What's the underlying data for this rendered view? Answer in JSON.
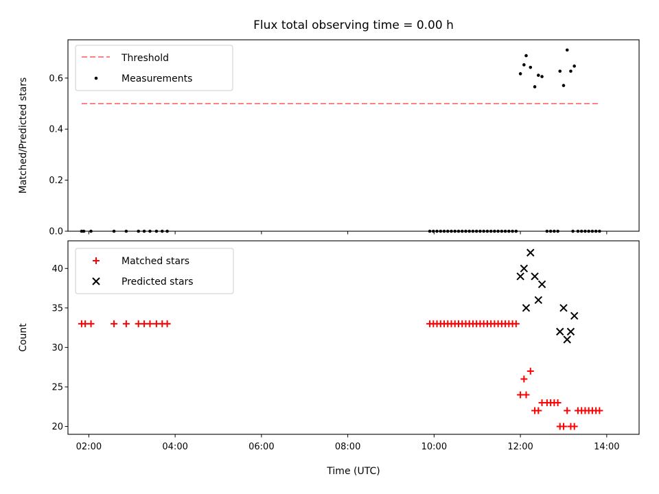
{
  "colors": {
    "threshold": "#ff7f7f",
    "measurement": "#000000",
    "matched": "#ff0000",
    "predicted": "#000000"
  },
  "chart_data": [
    {
      "type": "scatter",
      "title": "Flux total observing time = 0.00 h",
      "xlabel": "",
      "ylabel": "Matched/Predicted stars",
      "xlim": [
        "01:31",
        "14:45"
      ],
      "ylim": [
        0,
        0.75
      ],
      "x_ticks": [
        "02:00",
        "04:00",
        "06:00",
        "08:00",
        "10:00",
        "12:00",
        "14:00"
      ],
      "y_ticks": [
        "0.0",
        "0.2",
        "0.4",
        "0.6"
      ],
      "legend": {
        "position": "top-left",
        "entries": [
          "Threshold",
          "Measurements"
        ]
      },
      "threshold": {
        "name": "Threshold",
        "value": 0.5,
        "x_start": "01:50",
        "x_end": "13:50"
      },
      "series": [
        {
          "name": "Measurements",
          "points": [
            [
              "01:50",
              0
            ],
            [
              "01:53",
              0
            ],
            [
              "02:03",
              0
            ],
            [
              "02:35",
              0
            ],
            [
              "02:52",
              0
            ],
            [
              "03:09",
              0
            ],
            [
              "03:17",
              0
            ],
            [
              "03:25",
              0
            ],
            [
              "03:34",
              0
            ],
            [
              "03:42",
              0
            ],
            [
              "03:49",
              0
            ],
            [
              "09:54",
              0
            ],
            [
              "09:59",
              0
            ],
            [
              "10:04",
              0
            ],
            [
              "10:09",
              0
            ],
            [
              "10:14",
              0
            ],
            [
              "10:19",
              0
            ],
            [
              "10:24",
              0
            ],
            [
              "10:29",
              0
            ],
            [
              "10:34",
              0
            ],
            [
              "10:39",
              0
            ],
            [
              "10:44",
              0
            ],
            [
              "10:49",
              0
            ],
            [
              "10:54",
              0
            ],
            [
              "10:59",
              0
            ],
            [
              "11:04",
              0
            ],
            [
              "11:09",
              0
            ],
            [
              "11:14",
              0
            ],
            [
              "11:19",
              0
            ],
            [
              "11:24",
              0
            ],
            [
              "11:29",
              0
            ],
            [
              "11:34",
              0
            ],
            [
              "11:39",
              0
            ],
            [
              "11:44",
              0
            ],
            [
              "11:49",
              0
            ],
            [
              "11:54",
              0
            ],
            [
              "12:00",
              0.617
            ],
            [
              "12:05",
              0.652
            ],
            [
              "12:08",
              0.688
            ],
            [
              "12:14",
              0.642
            ],
            [
              "12:20",
              0.566
            ],
            [
              "12:25",
              0.611
            ],
            [
              "12:30",
              0.606
            ],
            [
              "12:37",
              0
            ],
            [
              "12:42",
              0
            ],
            [
              "12:47",
              0
            ],
            [
              "12:52",
              0
            ],
            [
              "12:55",
              0.627
            ],
            [
              "13:00",
              0.571
            ],
            [
              "13:05",
              0.71
            ],
            [
              "13:10",
              0.627
            ],
            [
              "13:15",
              0.647
            ],
            [
              "13:13",
              0
            ],
            [
              "13:20",
              0
            ],
            [
              "13:25",
              0
            ],
            [
              "13:30",
              0
            ],
            [
              "13:35",
              0
            ],
            [
              "13:40",
              0
            ],
            [
              "13:45",
              0
            ],
            [
              "13:50",
              0
            ]
          ]
        }
      ]
    },
    {
      "type": "scatter",
      "title": "",
      "xlabel": "Time (UTC)",
      "ylabel": "Count",
      "xlim": [
        "01:31",
        "14:45"
      ],
      "ylim": [
        19,
        43.5
      ],
      "x_ticks": [
        "02:00",
        "04:00",
        "06:00",
        "08:00",
        "10:00",
        "12:00",
        "14:00"
      ],
      "y_ticks": [
        "20",
        "25",
        "30",
        "35",
        "40"
      ],
      "legend": {
        "position": "top-left",
        "entries": [
          "Matched stars",
          "Predicted stars"
        ]
      },
      "series": [
        {
          "name": "Matched stars",
          "points": [
            [
              "01:50",
              33
            ],
            [
              "01:55",
              33
            ],
            [
              "02:03",
              33
            ],
            [
              "02:35",
              33
            ],
            [
              "02:52",
              33
            ],
            [
              "03:09",
              33
            ],
            [
              "03:17",
              33
            ],
            [
              "03:25",
              33
            ],
            [
              "03:34",
              33
            ],
            [
              "03:42",
              33
            ],
            [
              "03:49",
              33
            ],
            [
              "09:54",
              33
            ],
            [
              "09:59",
              33
            ],
            [
              "10:04",
              33
            ],
            [
              "10:09",
              33
            ],
            [
              "10:14",
              33
            ],
            [
              "10:19",
              33
            ],
            [
              "10:24",
              33
            ],
            [
              "10:29",
              33
            ],
            [
              "10:34",
              33
            ],
            [
              "10:39",
              33
            ],
            [
              "10:44",
              33
            ],
            [
              "10:49",
              33
            ],
            [
              "10:54",
              33
            ],
            [
              "10:59",
              33
            ],
            [
              "11:04",
              33
            ],
            [
              "11:09",
              33
            ],
            [
              "11:14",
              33
            ],
            [
              "11:19",
              33
            ],
            [
              "11:24",
              33
            ],
            [
              "11:29",
              33
            ],
            [
              "11:34",
              33
            ],
            [
              "11:39",
              33
            ],
            [
              "11:44",
              33
            ],
            [
              "11:49",
              33
            ],
            [
              "11:54",
              33
            ],
            [
              "12:00",
              24
            ],
            [
              "12:05",
              26
            ],
            [
              "12:08",
              24
            ],
            [
              "12:14",
              27
            ],
            [
              "12:20",
              22
            ],
            [
              "12:25",
              22
            ],
            [
              "12:30",
              23
            ],
            [
              "12:37",
              23
            ],
            [
              "12:42",
              23
            ],
            [
              "12:47",
              23
            ],
            [
              "12:52",
              23
            ],
            [
              "12:55",
              20
            ],
            [
              "13:00",
              20
            ],
            [
              "13:05",
              22
            ],
            [
              "13:10",
              20
            ],
            [
              "13:15",
              20
            ],
            [
              "13:20",
              22
            ],
            [
              "13:25",
              22
            ],
            [
              "13:30",
              22
            ],
            [
              "13:35",
              22
            ],
            [
              "13:40",
              22
            ],
            [
              "13:45",
              22
            ],
            [
              "13:50",
              22
            ]
          ]
        },
        {
          "name": "Predicted stars",
          "points": [
            [
              "12:00",
              39
            ],
            [
              "12:05",
              40
            ],
            [
              "12:08",
              35
            ],
            [
              "12:14",
              42
            ],
            [
              "12:20",
              39
            ],
            [
              "12:25",
              36
            ],
            [
              "12:30",
              38
            ],
            [
              "12:55",
              32
            ],
            [
              "13:00",
              35
            ],
            [
              "13:05",
              31
            ],
            [
              "13:10",
              32
            ],
            [
              "13:15",
              34
            ]
          ]
        }
      ]
    }
  ]
}
